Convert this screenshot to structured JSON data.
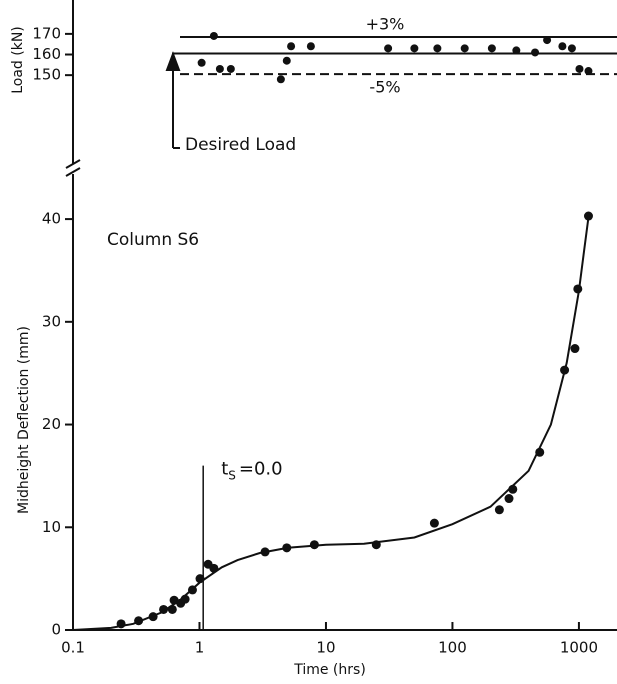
{
  "chart_data": [
    {
      "type": "scatter",
      "y_label": "Load (kN)",
      "xlim": [
        0.1,
        2000
      ],
      "ylim": [
        105,
        184
      ],
      "log_x": true,
      "yticks": [
        150,
        160,
        170
      ],
      "reference_lines": [
        {
          "label": "+3%",
          "value": 168.5,
          "style": "solid"
        },
        {
          "value": 160.5,
          "style": "solid"
        },
        {
          "label": "-5%",
          "value": 150.5,
          "style": "dashed"
        }
      ],
      "annotation": "Desired Load",
      "color": "#111",
      "x": [
        1.04,
        1.3,
        1.45,
        1.77,
        4.4,
        4.9,
        5.3,
        7.6,
        31,
        50,
        76,
        125,
        205,
        320,
        450,
        560,
        740,
        880,
        1010,
        1190
      ],
      "values": [
        156,
        169,
        153,
        153,
        148,
        157,
        164,
        164,
        163,
        163,
        163,
        163,
        163,
        162,
        161,
        167,
        164,
        163,
        153,
        152
      ]
    },
    {
      "type": "scatter",
      "title": "Column S6",
      "x_label": "Time (hrs)",
      "y_label": "Midheight Deflection (mm)",
      "log_x": true,
      "xlim": [
        0.1,
        2000
      ],
      "ylim": [
        0,
        44
      ],
      "xticks": [
        0.1,
        1,
        10,
        100,
        1000
      ],
      "yticks": [
        0,
        10,
        20,
        30,
        40
      ],
      "ts_marker": {
        "t": "t",
        "sub": "S",
        "rest": "=0.0",
        "x": 1.07,
        "top": 16
      },
      "series": [
        {
          "type": "scatter",
          "color": "#111",
          "x": [
            0.24,
            0.33,
            0.43,
            0.52,
            0.61,
            0.63,
            0.71,
            0.77,
            0.88,
            1.01,
            1.17,
            1.3,
            3.3,
            4.9,
            8.1,
            25,
            72,
            235,
            280,
            300,
            490,
            770,
            930,
            980,
            1190
          ],
          "values": [
            0.6,
            0.9,
            1.3,
            2.0,
            2.0,
            2.9,
            2.6,
            3.0,
            3.9,
            5.0,
            6.4,
            6.0,
            7.6,
            8.0,
            8.3,
            8.3,
            10.4,
            11.7,
            12.8,
            13.7,
            17.3,
            25.3,
            27.4,
            33.2,
            40.3
          ]
        },
        {
          "type": "line",
          "color": "#111",
          "x": [
            0.1,
            0.2,
            0.3,
            0.5,
            0.7,
            1,
            1.5,
            2,
            3,
            5,
            10,
            20,
            50,
            100,
            200,
            400,
            600,
            800,
            1000,
            1100,
            1200
          ],
          "values": [
            0,
            0.2,
            0.6,
            1.7,
            2.9,
            4.6,
            6.1,
            6.8,
            7.5,
            8.0,
            8.3,
            8.4,
            9.0,
            10.3,
            12.0,
            15.5,
            20,
            26,
            33,
            37,
            40.5
          ]
        }
      ]
    }
  ]
}
